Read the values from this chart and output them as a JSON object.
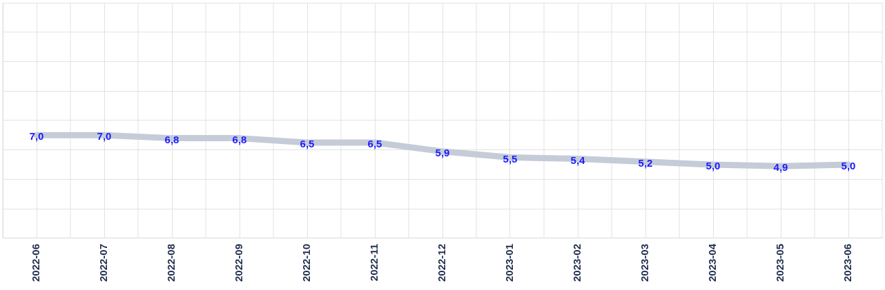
{
  "chart_data": {
    "type": "line",
    "categories": [
      "2022-06",
      "2022-07",
      "2022-08",
      "2022-09",
      "2022-10",
      "2022-11",
      "2022-12",
      "2023-01",
      "2023-02",
      "2023-03",
      "2023-04",
      "2023-05",
      "2023-06"
    ],
    "series": [
      {
        "color": "#c5ccd8",
        "values": [
          7.0,
          7.0,
          6.8,
          6.8,
          6.5,
          6.5,
          5.9,
          5.5,
          5.4,
          5.2,
          5.0,
          4.9,
          5.0
        ],
        "value_labels": [
          "7,0",
          "7,0",
          "6,8",
          "6,8",
          "6,5",
          "6,5",
          "5,9",
          "5,5",
          "5,4",
          "5,2",
          "5,0",
          "4,9",
          "5,0"
        ]
      }
    ],
    "ylim": [
      0,
      16
    ],
    "yticks": [
      {
        "value": 0,
        "label": null
      },
      {
        "value": 2,
        "label": null
      },
      {
        "value": 4,
        "label": null
      },
      {
        "value": 6,
        "label": null
      },
      {
        "value": 8,
        "label": null
      },
      {
        "value": 10,
        "label": null
      },
      {
        "value": 12,
        "label": null
      },
      {
        "value": 14,
        "label": null
      },
      {
        "value": 16,
        "label": null
      }
    ],
    "grid": true,
    "legend": false,
    "marker": "none",
    "line_style": "solid",
    "tick_labels": "x"
  }
}
